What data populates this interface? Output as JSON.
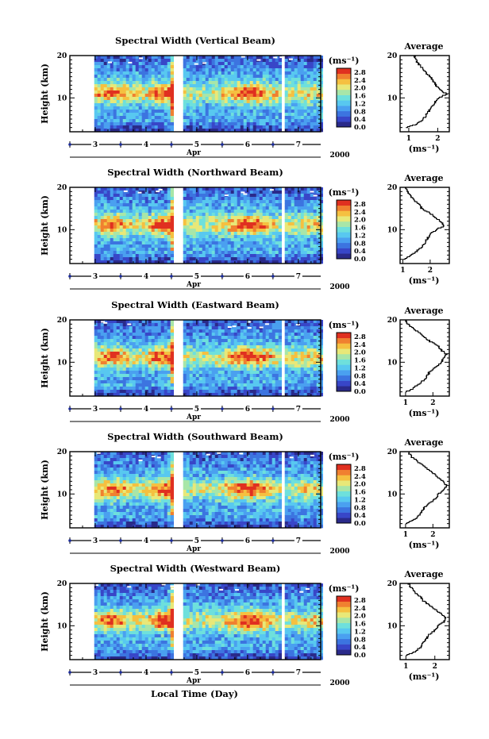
{
  "chart_data": [
    {
      "type": "heatmap",
      "title": "Spectral Width (Vertical Beam)",
      "ylabel": "Height (km)",
      "ylim": [
        2,
        20
      ],
      "yticks": [
        10,
        20
      ],
      "xlabel": "Apr",
      "x_ticks": [
        "3",
        "4",
        "5",
        "6",
        "7"
      ],
      "year": "2000",
      "colorbar": {
        "unit": "(ms⁻¹)",
        "ticks": [
          "0.0",
          "0.4",
          "0.8",
          "1.2",
          "1.6",
          "2.0",
          "2.4",
          "2.8"
        ],
        "range": [
          0,
          3.0
        ]
      },
      "data_gaps_days": [
        [
          4.58,
          4.67
        ],
        [
          6.68,
          6.72
        ]
      ],
      "average_profile": {
        "title": "Average",
        "xlabel": "(ms⁻¹)",
        "xticks": [
          "1",
          "2"
        ],
        "xlim": [
          0.7,
          2.4
        ],
        "heights": [
          3,
          4,
          5,
          6,
          7,
          8,
          9,
          10,
          11,
          12,
          13,
          14,
          15,
          16,
          17,
          18,
          19,
          20
        ],
        "values": [
          0.9,
          1.3,
          1.5,
          1.6,
          1.7,
          1.8,
          1.9,
          2.0,
          2.3,
          2.1,
          1.95,
          1.85,
          1.75,
          1.6,
          1.5,
          1.35,
          1.25,
          1.2
        ]
      }
    },
    {
      "type": "heatmap",
      "title": "Spectral Width (Northward Beam)",
      "ylabel": "Height (km)",
      "ylim": [
        2,
        20
      ],
      "yticks": [
        10,
        20
      ],
      "xlabel": "Apr",
      "x_ticks": [
        "3",
        "4",
        "5",
        "6",
        "7"
      ],
      "year": "2000",
      "colorbar": {
        "unit": "(ms⁻¹)",
        "ticks": [
          "0.0",
          "0.4",
          "0.8",
          "1.2",
          "1.6",
          "2.0",
          "2.4",
          "2.8"
        ],
        "range": [
          0,
          3.0
        ]
      },
      "data_gaps_days": [
        [
          4.58,
          4.67
        ],
        [
          6.68,
          6.72
        ]
      ],
      "average_profile": {
        "title": "Average",
        "xlabel": "(ms⁻¹)",
        "xticks": [
          "1",
          "2"
        ],
        "xlim": [
          0.9,
          2.7
        ],
        "heights": [
          3,
          4,
          5,
          6,
          7,
          8,
          9,
          10,
          11,
          12,
          13,
          14,
          15,
          16,
          17,
          18,
          19,
          20
        ],
        "values": [
          1.0,
          1.3,
          1.5,
          1.7,
          1.8,
          1.9,
          2.0,
          2.2,
          2.5,
          2.4,
          2.2,
          2.0,
          1.7,
          1.6,
          1.4,
          1.3,
          1.2,
          1.1
        ]
      }
    },
    {
      "type": "heatmap",
      "title": "Spectral Width (Eastward Beam)",
      "ylabel": "Height (km)",
      "ylim": [
        2,
        20
      ],
      "yticks": [
        10,
        20
      ],
      "xlabel": "Apr",
      "x_ticks": [
        "3",
        "4",
        "5",
        "6",
        "7"
      ],
      "year": "2000",
      "colorbar": {
        "unit": "(ms⁻¹)",
        "ticks": [
          "0.0",
          "0.4",
          "0.8",
          "1.2",
          "1.6",
          "2.0",
          "2.4",
          "2.8"
        ],
        "range": [
          0,
          3.0
        ]
      },
      "data_gaps_days": [
        [
          4.58,
          4.67
        ],
        [
          6.68,
          6.72
        ]
      ],
      "average_profile": {
        "title": "Average",
        "xlabel": "(ms⁻¹)",
        "xticks": [
          "1",
          "2"
        ],
        "xlim": [
          0.8,
          2.6
        ],
        "heights": [
          3,
          4,
          5,
          6,
          7,
          8,
          9,
          10,
          11,
          12,
          13,
          14,
          15,
          16,
          17,
          18,
          19,
          20
        ],
        "values": [
          1.0,
          1.3,
          1.5,
          1.7,
          1.8,
          1.9,
          2.1,
          2.3,
          2.4,
          2.5,
          2.3,
          2.2,
          1.9,
          1.7,
          1.5,
          1.3,
          1.1,
          1.0
        ]
      }
    },
    {
      "type": "heatmap",
      "title": "Spectral Width (Southward Beam)",
      "ylabel": "Height (km)",
      "ylim": [
        2,
        20
      ],
      "yticks": [
        10,
        20
      ],
      "xlabel": "Apr",
      "x_ticks": [
        "3",
        "4",
        "5",
        "6",
        "7"
      ],
      "year": "2000",
      "colorbar": {
        "unit": "(ms⁻¹)",
        "ticks": [
          "0.0",
          "0.4",
          "0.8",
          "1.2",
          "1.6",
          "2.0",
          "2.4",
          "2.8"
        ],
        "range": [
          0,
          3.0
        ]
      },
      "data_gaps_days": [
        [
          4.58,
          4.67
        ],
        [
          6.68,
          6.72
        ]
      ],
      "average_profile": {
        "title": "Average",
        "xlabel": "(ms⁻¹)",
        "xticks": [
          "1",
          "2"
        ],
        "xlim": [
          0.8,
          2.6
        ],
        "heights": [
          3,
          4,
          5,
          6,
          7,
          8,
          9,
          10,
          11,
          12,
          13,
          14,
          15,
          16,
          17,
          18,
          19,
          20
        ],
        "values": [
          1.0,
          1.3,
          1.5,
          1.6,
          1.7,
          1.9,
          2.1,
          2.2,
          2.4,
          2.5,
          2.4,
          2.2,
          2.0,
          1.8,
          1.6,
          1.4,
          1.2,
          1.1
        ]
      }
    },
    {
      "type": "heatmap",
      "title": "Spectral Width (Westward Beam)",
      "ylabel": "Height (km)",
      "ylim": [
        2,
        20
      ],
      "yticks": [
        10,
        20
      ],
      "xlabel": "Apr",
      "x_ticks": [
        "3",
        "4",
        "5",
        "6",
        "7"
      ],
      "year": "2000",
      "colorbar": {
        "unit": "(ms⁻¹)",
        "ticks": [
          "0.0",
          "0.4",
          "0.8",
          "1.2",
          "1.6",
          "2.0",
          "2.4",
          "2.8"
        ],
        "range": [
          0,
          3.0
        ]
      },
      "data_gaps_days": [
        [
          4.58,
          4.67
        ],
        [
          6.68,
          6.72
        ]
      ],
      "average_profile": {
        "title": "Average",
        "xlabel": "(ms⁻¹)",
        "xticks": [
          "1",
          "2"
        ],
        "xlim": [
          0.8,
          2.5
        ],
        "heights": [
          3,
          4,
          5,
          6,
          7,
          8,
          9,
          10,
          11,
          12,
          13,
          14,
          15,
          16,
          17,
          18,
          19,
          20
        ],
        "values": [
          1.0,
          1.3,
          1.5,
          1.6,
          1.7,
          1.8,
          2.0,
          2.1,
          2.3,
          2.4,
          2.2,
          2.0,
          1.8,
          1.6,
          1.5,
          1.3,
          1.2,
          1.1
        ]
      }
    }
  ],
  "footer": {
    "xlabel": "Local Time (Day)"
  },
  "colors": {
    "colormap": [
      "#2a2a8a",
      "#3846c8",
      "#3c74e0",
      "#4aa0f0",
      "#58c8f0",
      "#6ee0dc",
      "#a8e6a8",
      "#e8e878",
      "#f5c040",
      "#f08030",
      "#e03020"
    ],
    "axis": "#000000",
    "tick_marker": "#1a2a9a"
  }
}
